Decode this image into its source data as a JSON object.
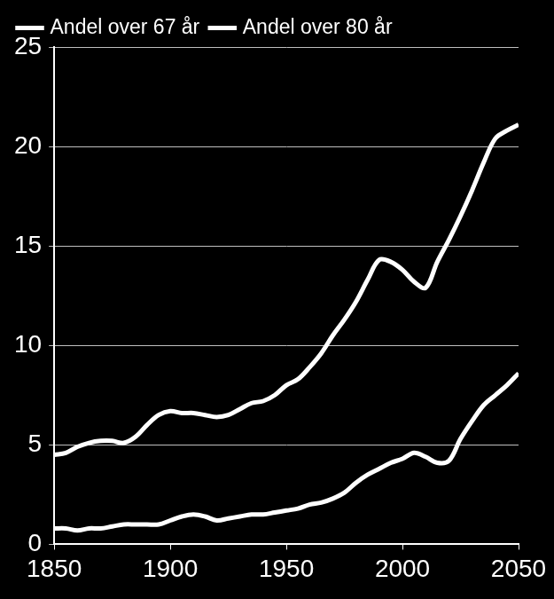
{
  "chart_data": {
    "type": "line",
    "x": [
      1850,
      1855,
      1860,
      1865,
      1870,
      1875,
      1880,
      1885,
      1890,
      1895,
      1900,
      1905,
      1910,
      1915,
      1920,
      1925,
      1930,
      1935,
      1940,
      1945,
      1950,
      1955,
      1960,
      1965,
      1970,
      1975,
      1980,
      1985,
      1990,
      1995,
      2000,
      2005,
      2010,
      2015,
      2020,
      2025,
      2030,
      2035,
      2040,
      2045,
      2050
    ],
    "series": [
      {
        "name": "Andel over 67 år",
        "color": "#ffffff",
        "values": [
          4.5,
          4.6,
          4.9,
          5.1,
          5.2,
          5.2,
          5.1,
          5.4,
          6.0,
          6.5,
          6.7,
          6.6,
          6.6,
          6.5,
          6.4,
          6.5,
          6.8,
          7.1,
          7.2,
          7.5,
          8.0,
          8.3,
          8.9,
          9.6,
          10.5,
          11.3,
          12.2,
          13.3,
          14.3,
          14.2,
          13.8,
          13.2,
          12.9,
          14.2,
          15.3,
          16.5,
          17.8,
          19.2,
          20.4,
          20.8,
          21.1
        ]
      },
      {
        "name": "Andel over 80 år",
        "color": "#ffffff",
        "values": [
          0.8,
          0.8,
          0.7,
          0.8,
          0.8,
          0.9,
          1.0,
          1.0,
          1.0,
          1.0,
          1.2,
          1.4,
          1.5,
          1.4,
          1.2,
          1.3,
          1.4,
          1.5,
          1.5,
          1.6,
          1.7,
          1.8,
          2.0,
          2.1,
          2.3,
          2.6,
          3.1,
          3.5,
          3.8,
          4.1,
          4.3,
          4.6,
          4.4,
          4.1,
          4.2,
          5.3,
          6.2,
          7.0,
          7.5,
          8.0,
          8.6
        ]
      }
    ],
    "xlim": [
      1850,
      2050
    ],
    "xticks": [
      1850,
      1900,
      1950,
      2000,
      2050
    ],
    "ylim": [
      0,
      25
    ],
    "yticks": [
      0,
      5,
      10,
      15,
      20,
      25
    ],
    "grid": true,
    "legend": "top"
  }
}
